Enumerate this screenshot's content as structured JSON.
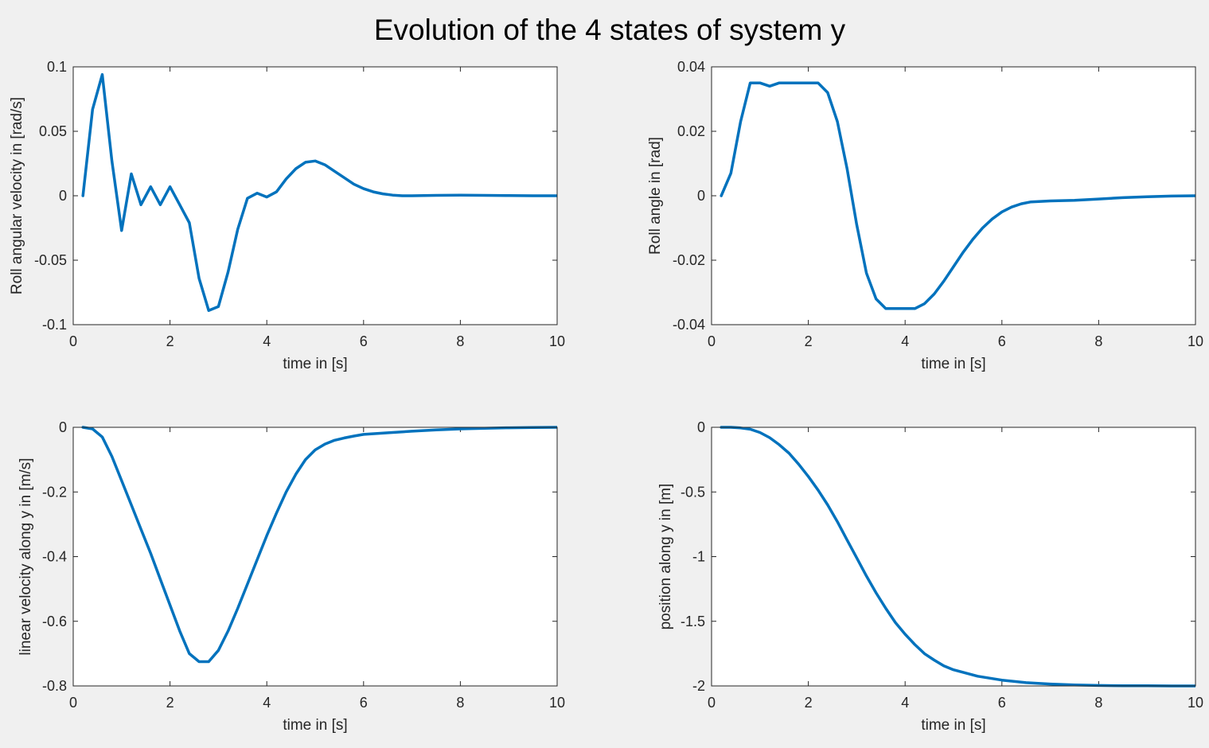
{
  "figure": {
    "title": "Evolution of the 4 states of system y",
    "line_color": "#0072bd"
  },
  "chart_data": [
    {
      "type": "line",
      "xlabel": "time in [s]",
      "ylabel": "Roll angular velocity in [rad/s]",
      "xlim": [
        0,
        10
      ],
      "ylim": [
        -0.1,
        0.1
      ],
      "xticks": [
        0,
        2,
        4,
        6,
        8,
        10
      ],
      "xtick_labels": [
        "0",
        "2",
        "4",
        "6",
        "8",
        "10"
      ],
      "yticks": [
        -0.1,
        -0.05,
        0,
        0.05,
        0.1
      ],
      "ytick_labels": [
        "-0.1",
        "-0.05",
        "0",
        "0.05",
        "0.1"
      ],
      "grid": false,
      "x": [
        0.2,
        0.4,
        0.6,
        0.8,
        1.0,
        1.2,
        1.4,
        1.6,
        1.8,
        2.0,
        2.2,
        2.4,
        2.6,
        2.8,
        3.0,
        3.2,
        3.4,
        3.6,
        3.8,
        4.0,
        4.2,
        4.4,
        4.6,
        4.8,
        5.0,
        5.2,
        5.4,
        5.6,
        5.8,
        6.0,
        6.2,
        6.4,
        6.6,
        6.8,
        7.0,
        7.5,
        8.0,
        8.5,
        9.0,
        9.5,
        10.0
      ],
      "y": [
        0.0,
        0.067,
        0.094,
        0.027,
        -0.027,
        0.017,
        -0.007,
        0.007,
        -0.007,
        0.007,
        -0.007,
        -0.021,
        -0.064,
        -0.089,
        -0.086,
        -0.059,
        -0.026,
        -0.002,
        0.002,
        -0.001,
        0.003,
        0.013,
        0.021,
        0.026,
        0.027,
        0.024,
        0.019,
        0.014,
        0.009,
        0.0055,
        0.003,
        0.0015,
        0.0005,
        0.0,
        0.0,
        0.0003,
        0.0005,
        0.0003,
        0.0001,
        0.0,
        0.0
      ]
    },
    {
      "type": "line",
      "xlabel": "time in [s]",
      "ylabel": "Roll angle in [rad]",
      "xlim": [
        0,
        10
      ],
      "ylim": [
        -0.04,
        0.04
      ],
      "xticks": [
        0,
        2,
        4,
        6,
        8,
        10
      ],
      "xtick_labels": [
        "0",
        "2",
        "4",
        "6",
        "8",
        "10"
      ],
      "yticks": [
        -0.04,
        -0.02,
        0,
        0.02,
        0.04
      ],
      "ytick_labels": [
        "-0.04",
        "-0.02",
        "0",
        "0.02",
        "0.04"
      ],
      "grid": false,
      "x": [
        0.2,
        0.4,
        0.6,
        0.8,
        1.0,
        1.2,
        1.4,
        1.6,
        1.8,
        2.0,
        2.2,
        2.4,
        2.6,
        2.8,
        3.0,
        3.2,
        3.4,
        3.6,
        3.8,
        4.0,
        4.2,
        4.4,
        4.6,
        4.8,
        5.0,
        5.2,
        5.4,
        5.6,
        5.8,
        6.0,
        6.2,
        6.4,
        6.6,
        7.0,
        7.5,
        8.0,
        8.5,
        9.0,
        9.5,
        10.0
      ],
      "y": [
        0.0,
        0.007,
        0.023,
        0.035,
        0.035,
        0.034,
        0.035,
        0.035,
        0.035,
        0.035,
        0.035,
        0.032,
        0.023,
        0.0085,
        -0.009,
        -0.024,
        -0.032,
        -0.035,
        -0.035,
        -0.035,
        -0.035,
        -0.0335,
        -0.0305,
        -0.0265,
        -0.022,
        -0.0175,
        -0.0135,
        -0.01,
        -0.0072,
        -0.005,
        -0.0035,
        -0.0025,
        -0.0019,
        -0.0016,
        -0.0014,
        -0.001,
        -0.0006,
        -0.0003,
        -0.0001,
        0.0
      ]
    },
    {
      "type": "line",
      "xlabel": "time in [s]",
      "ylabel": "linear velocity along y in [m/s]",
      "xlim": [
        0,
        10
      ],
      "ylim": [
        -0.8,
        0
      ],
      "xticks": [
        0,
        2,
        4,
        6,
        8,
        10
      ],
      "xtick_labels": [
        "0",
        "2",
        "4",
        "6",
        "8",
        "10"
      ],
      "yticks": [
        -0.8,
        -0.6,
        -0.4,
        -0.2,
        0
      ],
      "ytick_labels": [
        "-0.8",
        "-0.6",
        "-0.4",
        "-0.2",
        "0"
      ],
      "grid": false,
      "x": [
        0.2,
        0.4,
        0.6,
        0.8,
        1.0,
        1.2,
        1.4,
        1.6,
        1.8,
        2.0,
        2.2,
        2.4,
        2.6,
        2.8,
        3.0,
        3.2,
        3.4,
        3.6,
        3.8,
        4.0,
        4.2,
        4.4,
        4.6,
        4.8,
        5.0,
        5.2,
        5.4,
        5.6,
        5.8,
        6.0,
        6.5,
        7.0,
        7.5,
        8.0,
        8.5,
        9.0,
        9.5,
        10.0
      ],
      "y": [
        0.0,
        -0.005,
        -0.03,
        -0.09,
        -0.165,
        -0.24,
        -0.315,
        -0.39,
        -0.47,
        -0.55,
        -0.63,
        -0.7,
        -0.725,
        -0.725,
        -0.69,
        -0.63,
        -0.56,
        -0.485,
        -0.41,
        -0.335,
        -0.265,
        -0.2,
        -0.145,
        -0.1,
        -0.07,
        -0.052,
        -0.04,
        -0.033,
        -0.027,
        -0.022,
        -0.017,
        -0.012,
        -0.008,
        -0.005,
        -0.003,
        -0.0015,
        -0.0005,
        0.0
      ]
    },
    {
      "type": "line",
      "xlabel": "time in [s]",
      "ylabel": "position along y in [m]",
      "xlim": [
        0,
        10
      ],
      "ylim": [
        -2,
        0
      ],
      "xticks": [
        0,
        2,
        4,
        6,
        8,
        10
      ],
      "xtick_labels": [
        "0",
        "2",
        "4",
        "6",
        "8",
        "10"
      ],
      "yticks": [
        -2,
        -1.5,
        -1,
        -0.5,
        0
      ],
      "ytick_labels": [
        "-2",
        "-1.5",
        "-1",
        "-0.5",
        "0"
      ],
      "grid": false,
      "x": [
        0.2,
        0.4,
        0.6,
        0.8,
        1.0,
        1.2,
        1.4,
        1.6,
        1.8,
        2.0,
        2.2,
        2.4,
        2.6,
        2.8,
        3.0,
        3.2,
        3.4,
        3.6,
        3.8,
        4.0,
        4.2,
        4.4,
        4.6,
        4.8,
        5.0,
        5.5,
        6.0,
        6.5,
        7.0,
        7.5,
        8.0,
        8.5,
        9.0,
        9.5,
        10.0
      ],
      "y": [
        0.0,
        0.0,
        -0.005,
        -0.015,
        -0.04,
        -0.08,
        -0.135,
        -0.2,
        -0.285,
        -0.38,
        -0.485,
        -0.6,
        -0.73,
        -0.87,
        -1.01,
        -1.15,
        -1.28,
        -1.4,
        -1.51,
        -1.6,
        -1.68,
        -1.75,
        -1.8,
        -1.845,
        -1.875,
        -1.925,
        -1.955,
        -1.975,
        -1.985,
        -1.992,
        -1.996,
        -1.998,
        -1.999,
        -2.0,
        -2.0
      ]
    }
  ]
}
